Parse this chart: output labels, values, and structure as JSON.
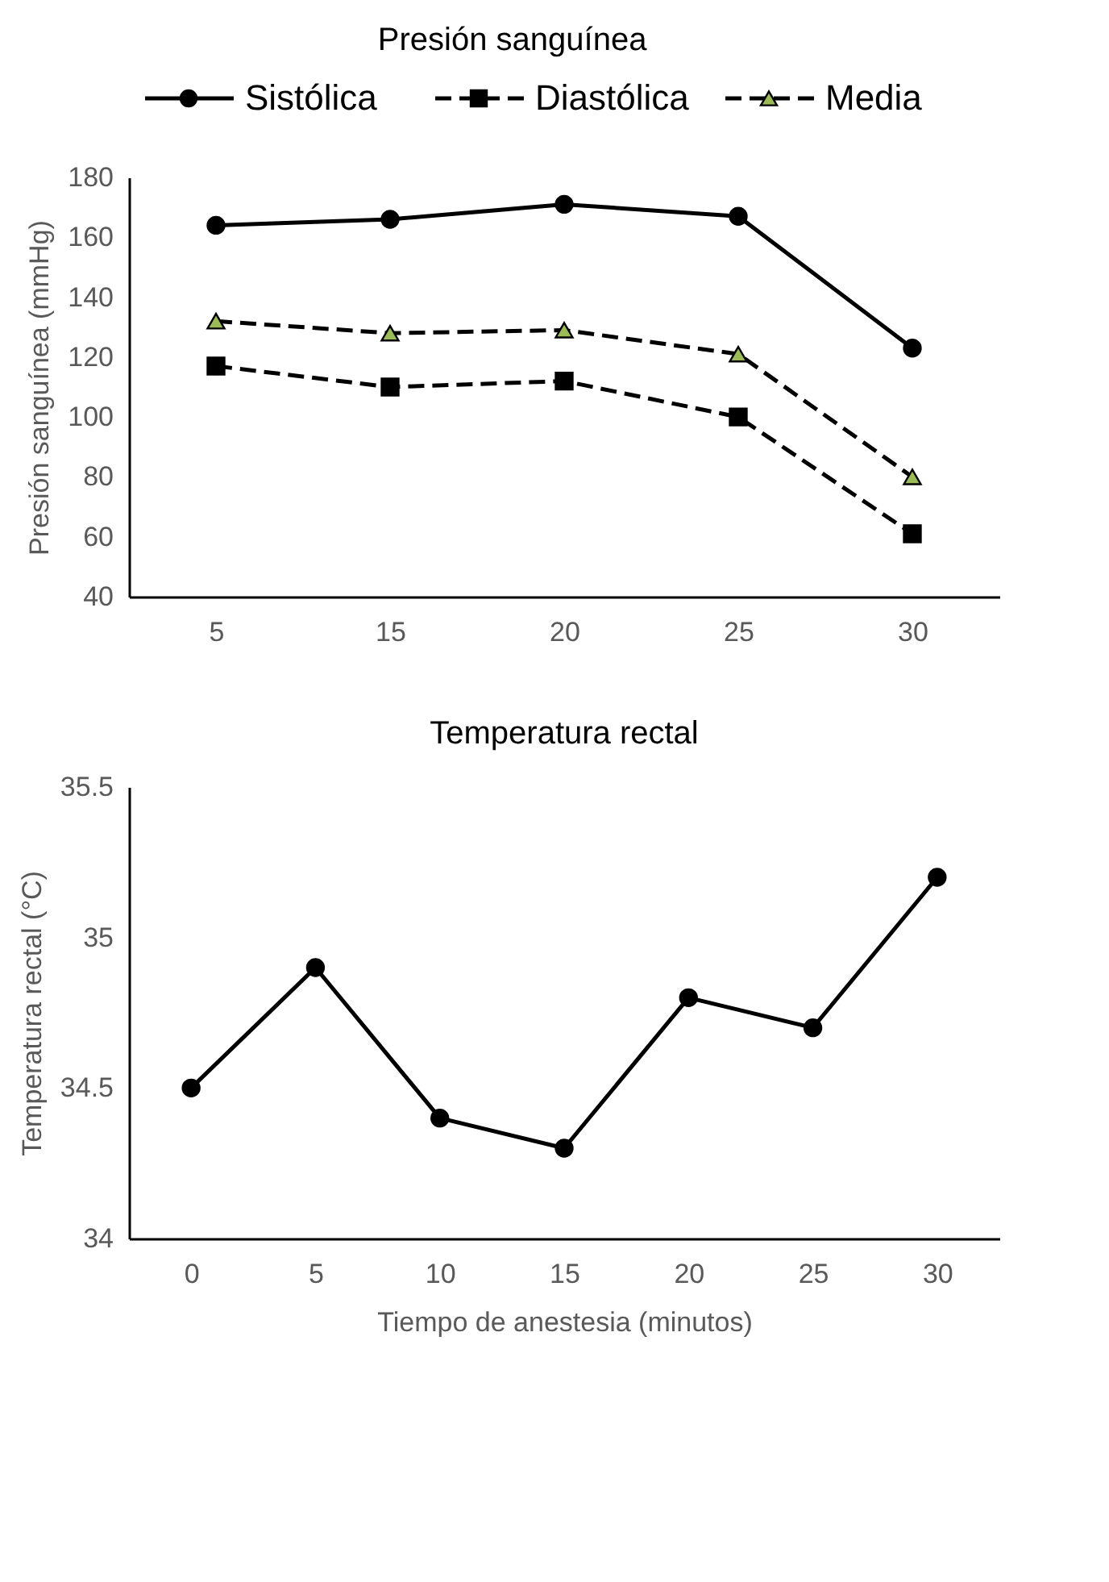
{
  "chart_data": [
    {
      "type": "line",
      "title": "Presión sanguínea",
      "ylabel": "Presión sanguínea (mmHg)",
      "categories": [
        "5",
        "15",
        "20",
        "25",
        "30"
      ],
      "ylim": [
        40,
        180
      ],
      "yticks": [
        40,
        60,
        80,
        100,
        120,
        140,
        160,
        180
      ],
      "grid": false,
      "legend": "top",
      "series": [
        {
          "name": "Sistólica",
          "color": "#000000",
          "marker": "circle",
          "line_style": "solid",
          "values": [
            164,
            166,
            171,
            167,
            123
          ]
        },
        {
          "name": "Diastólica",
          "color": "#000000",
          "marker": "square",
          "line_style": "dashed",
          "values": [
            117,
            110,
            112,
            100,
            61
          ]
        },
        {
          "name": "Media",
          "color": "#000000",
          "colors": [
            "#9bbb59",
            "#9bbb59",
            "#9bbb59",
            "#9bbb59",
            "#9bbb59"
          ],
          "marker": "triangle",
          "line_style": "dashed",
          "values": [
            132,
            128,
            129,
            121,
            80
          ]
        }
      ]
    },
    {
      "type": "line",
      "title": "Temperatura rectal",
      "ylabel": "Temperatura rectal (°C)",
      "xlabel": "Tiempo de anestesia (minutos)",
      "categories": [
        "0",
        "5",
        "10",
        "15",
        "20",
        "25",
        "30"
      ],
      "ylim": [
        34,
        35.5
      ],
      "yticks": [
        34,
        34.5,
        35,
        35.5
      ],
      "grid": false,
      "series": [
        {
          "color": "#000000",
          "marker": "circle",
          "line_style": "solid",
          "values": [
            34.5,
            34.9,
            34.4,
            34.3,
            34.8,
            34.7,
            35.2
          ]
        }
      ]
    }
  ]
}
